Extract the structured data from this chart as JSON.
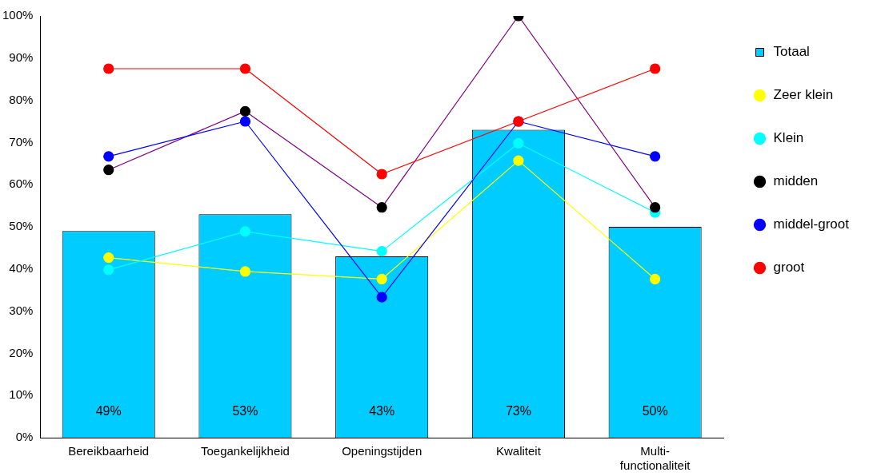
{
  "chart_data": {
    "type": "bar",
    "categories": [
      "Bereikbaarheid",
      "Toegankelijkheid",
      "Openingstijden",
      "Kwaliteit",
      "Multi-functionaliteit"
    ],
    "ylim": [
      0,
      100
    ],
    "yticks": [
      {
        "value": 0,
        "label": "0%"
      },
      {
        "value": 10,
        "label": "10%"
      },
      {
        "value": 20,
        "label": "20%"
      },
      {
        "value": 30,
        "label": "30%"
      },
      {
        "value": 40,
        "label": "40%"
      },
      {
        "value": 50,
        "label": "50%"
      },
      {
        "value": 60,
        "label": "60%"
      },
      {
        "value": 70,
        "label": "70%"
      },
      {
        "value": 80,
        "label": "80%"
      },
      {
        "value": 90,
        "label": "90%"
      },
      {
        "value": 100,
        "label": "100%"
      }
    ],
    "grid": false,
    "legend": "right",
    "marker": "circle",
    "line_style": "solid",
    "series": [
      {
        "name": "Totaal",
        "color": "#00ccff",
        "values": [
          49,
          53,
          43,
          73,
          50
        ],
        "value_labels": [
          "49%",
          "53%",
          "43%",
          "73%",
          "50%"
        ]
      },
      {
        "name": "Zeer klein",
        "type": "line",
        "color": "#ffff00",
        "values": [
          42.7,
          39.4,
          37.6,
          65.7,
          37.6
        ]
      },
      {
        "name": "Klein",
        "type": "line",
        "color": "#00ffff",
        "values": [
          39.8,
          48.9,
          44.2,
          69.8,
          53.4
        ]
      },
      {
        "name": "midden",
        "type": "line",
        "color": "#800080",
        "colors": [
          "#000000",
          "#000000",
          "#000000",
          "#000000",
          "#000000"
        ],
        "values": [
          63.5,
          77.4,
          54.6,
          100,
          54.6
        ]
      },
      {
        "name": "middel-groot",
        "type": "line",
        "color": "#0000ff",
        "values": [
          66.7,
          75,
          33.3,
          75,
          66.7
        ]
      },
      {
        "name": "groot",
        "type": "line",
        "color": "#ff0000",
        "values": [
          87.5,
          87.5,
          62.5,
          75,
          87.5
        ]
      }
    ]
  }
}
